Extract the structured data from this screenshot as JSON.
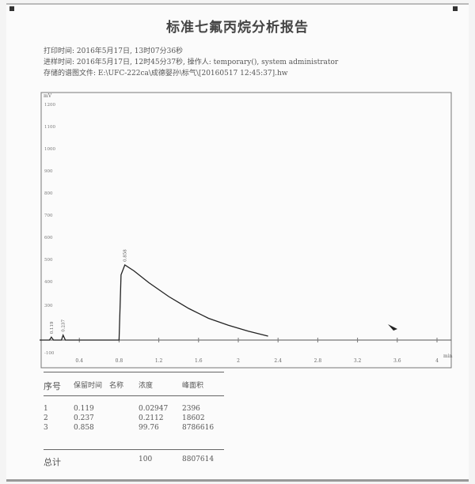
{
  "report": {
    "title": "标准七氟丙烷分析报告",
    "print_time": "打印时间: 2016年5月17日, 13时07分36秒",
    "inject_time": "进样时间: 2016年5月17日, 12时45分37秒, 操作人: temporary(), system administrator",
    "file": "存储的谱图文件: E:\\UFC-222ca\\成德婴孙\\标气\\[20160517 12:45:37].hw"
  },
  "chart_data": {
    "type": "line",
    "ylabel": "mV",
    "xlabel": "min",
    "xlim": [
      0,
      4.1
    ],
    "ylim": [
      -200,
      1250
    ],
    "x_ticks": [
      "0.4",
      "0.8",
      "1.2",
      "1.6",
      "2",
      "2.4",
      "2.8",
      "3.2",
      "3.6",
      "4"
    ],
    "y_ticks": [
      "1200",
      "1100",
      "1000",
      "900",
      "800",
      "700",
      "600",
      "500",
      "400",
      "300",
      "-100"
    ],
    "peak_labels": [
      {
        "x": 0.119,
        "label": "0.119"
      },
      {
        "x": 0.237,
        "label": "0.237"
      },
      {
        "x": 0.858,
        "label": "0.858"
      }
    ],
    "series": [
      {
        "x": [
          0,
          0.1,
          0.119,
          0.14,
          0.22,
          0.237,
          0.26,
          0.8,
          0.82,
          0.858,
          0.95,
          1.1,
          1.3,
          1.5,
          1.7,
          1.9,
          2.1,
          2.3
        ],
        "y": [
          0,
          0,
          15,
          0,
          0,
          25,
          0,
          0,
          330,
          380,
          350,
          290,
          220,
          160,
          110,
          75,
          45,
          20
        ]
      }
    ]
  },
  "table": {
    "headers": [
      "序号",
      "保留时间",
      "名称",
      "浓度",
      "峰面积"
    ],
    "rows": [
      [
        "1",
        "0.119",
        "",
        "0.02947",
        "2396"
      ],
      [
        "2",
        "0.237",
        "",
        "0.2112",
        "18602"
      ],
      [
        "3",
        "0.858",
        "",
        "99.76",
        "8786616"
      ]
    ],
    "total": [
      "总计",
      "",
      "",
      "100",
      "8807614"
    ]
  }
}
